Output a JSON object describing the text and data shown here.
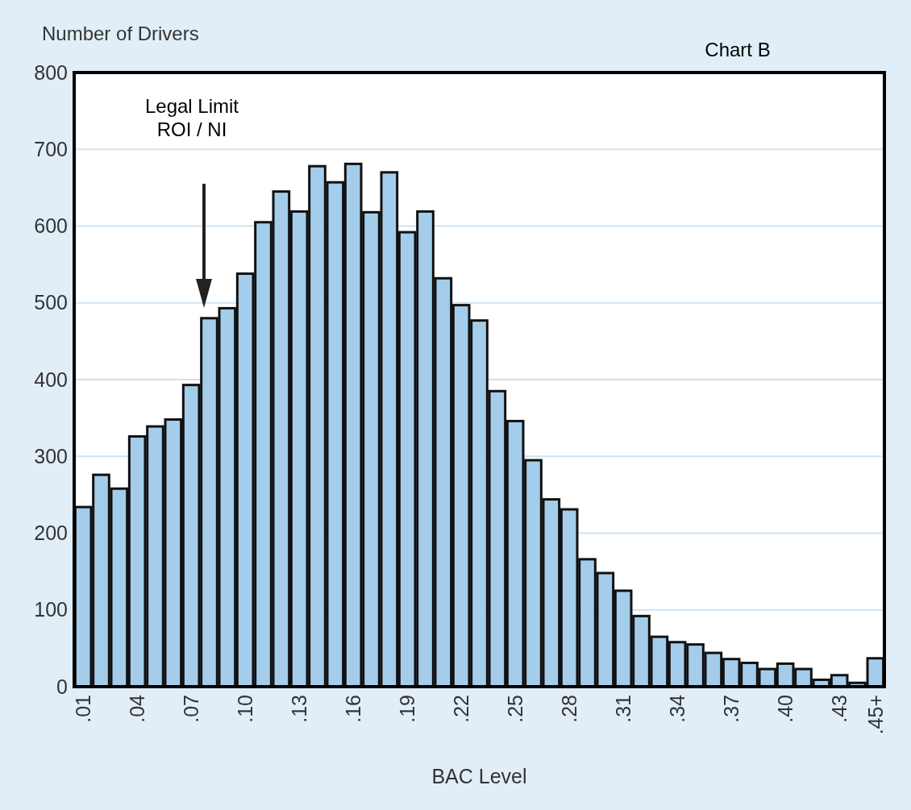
{
  "chart_data": {
    "type": "bar",
    "title": "Chart B",
    "xlabel": "BAC Level",
    "ylabel": "Number of Drivers",
    "annotations": [
      "Legal Limit\nROI / NI"
    ],
    "categories": [
      ".01",
      null,
      null,
      ".04",
      null,
      null,
      ".07",
      null,
      null,
      ".10",
      null,
      null,
      ".13",
      null,
      null,
      ".16",
      null,
      null,
      ".19",
      null,
      null,
      ".22",
      null,
      null,
      ".25",
      null,
      null,
      ".28",
      null,
      null,
      ".31",
      null,
      null,
      ".34",
      null,
      null,
      ".37",
      null,
      null,
      ".40",
      null,
      null,
      ".43",
      null,
      ".45+"
    ],
    "values": [
      234,
      276,
      258,
      326,
      339,
      348,
      393,
      480,
      493,
      538,
      605,
      645,
      619,
      678,
      657,
      681,
      618,
      670,
      592,
      619,
      532,
      497,
      477,
      385,
      346,
      295,
      244,
      231,
      166,
      148,
      125,
      92,
      65,
      58,
      55,
      44,
      36,
      31,
      23,
      30,
      23,
      9,
      15,
      5,
      37
    ],
    "color": "#a3cdeb",
    "ylim": [
      0,
      800
    ],
    "yticks": [
      0,
      100,
      200,
      300,
      400,
      500,
      600,
      700,
      800
    ],
    "grid": "y"
  }
}
